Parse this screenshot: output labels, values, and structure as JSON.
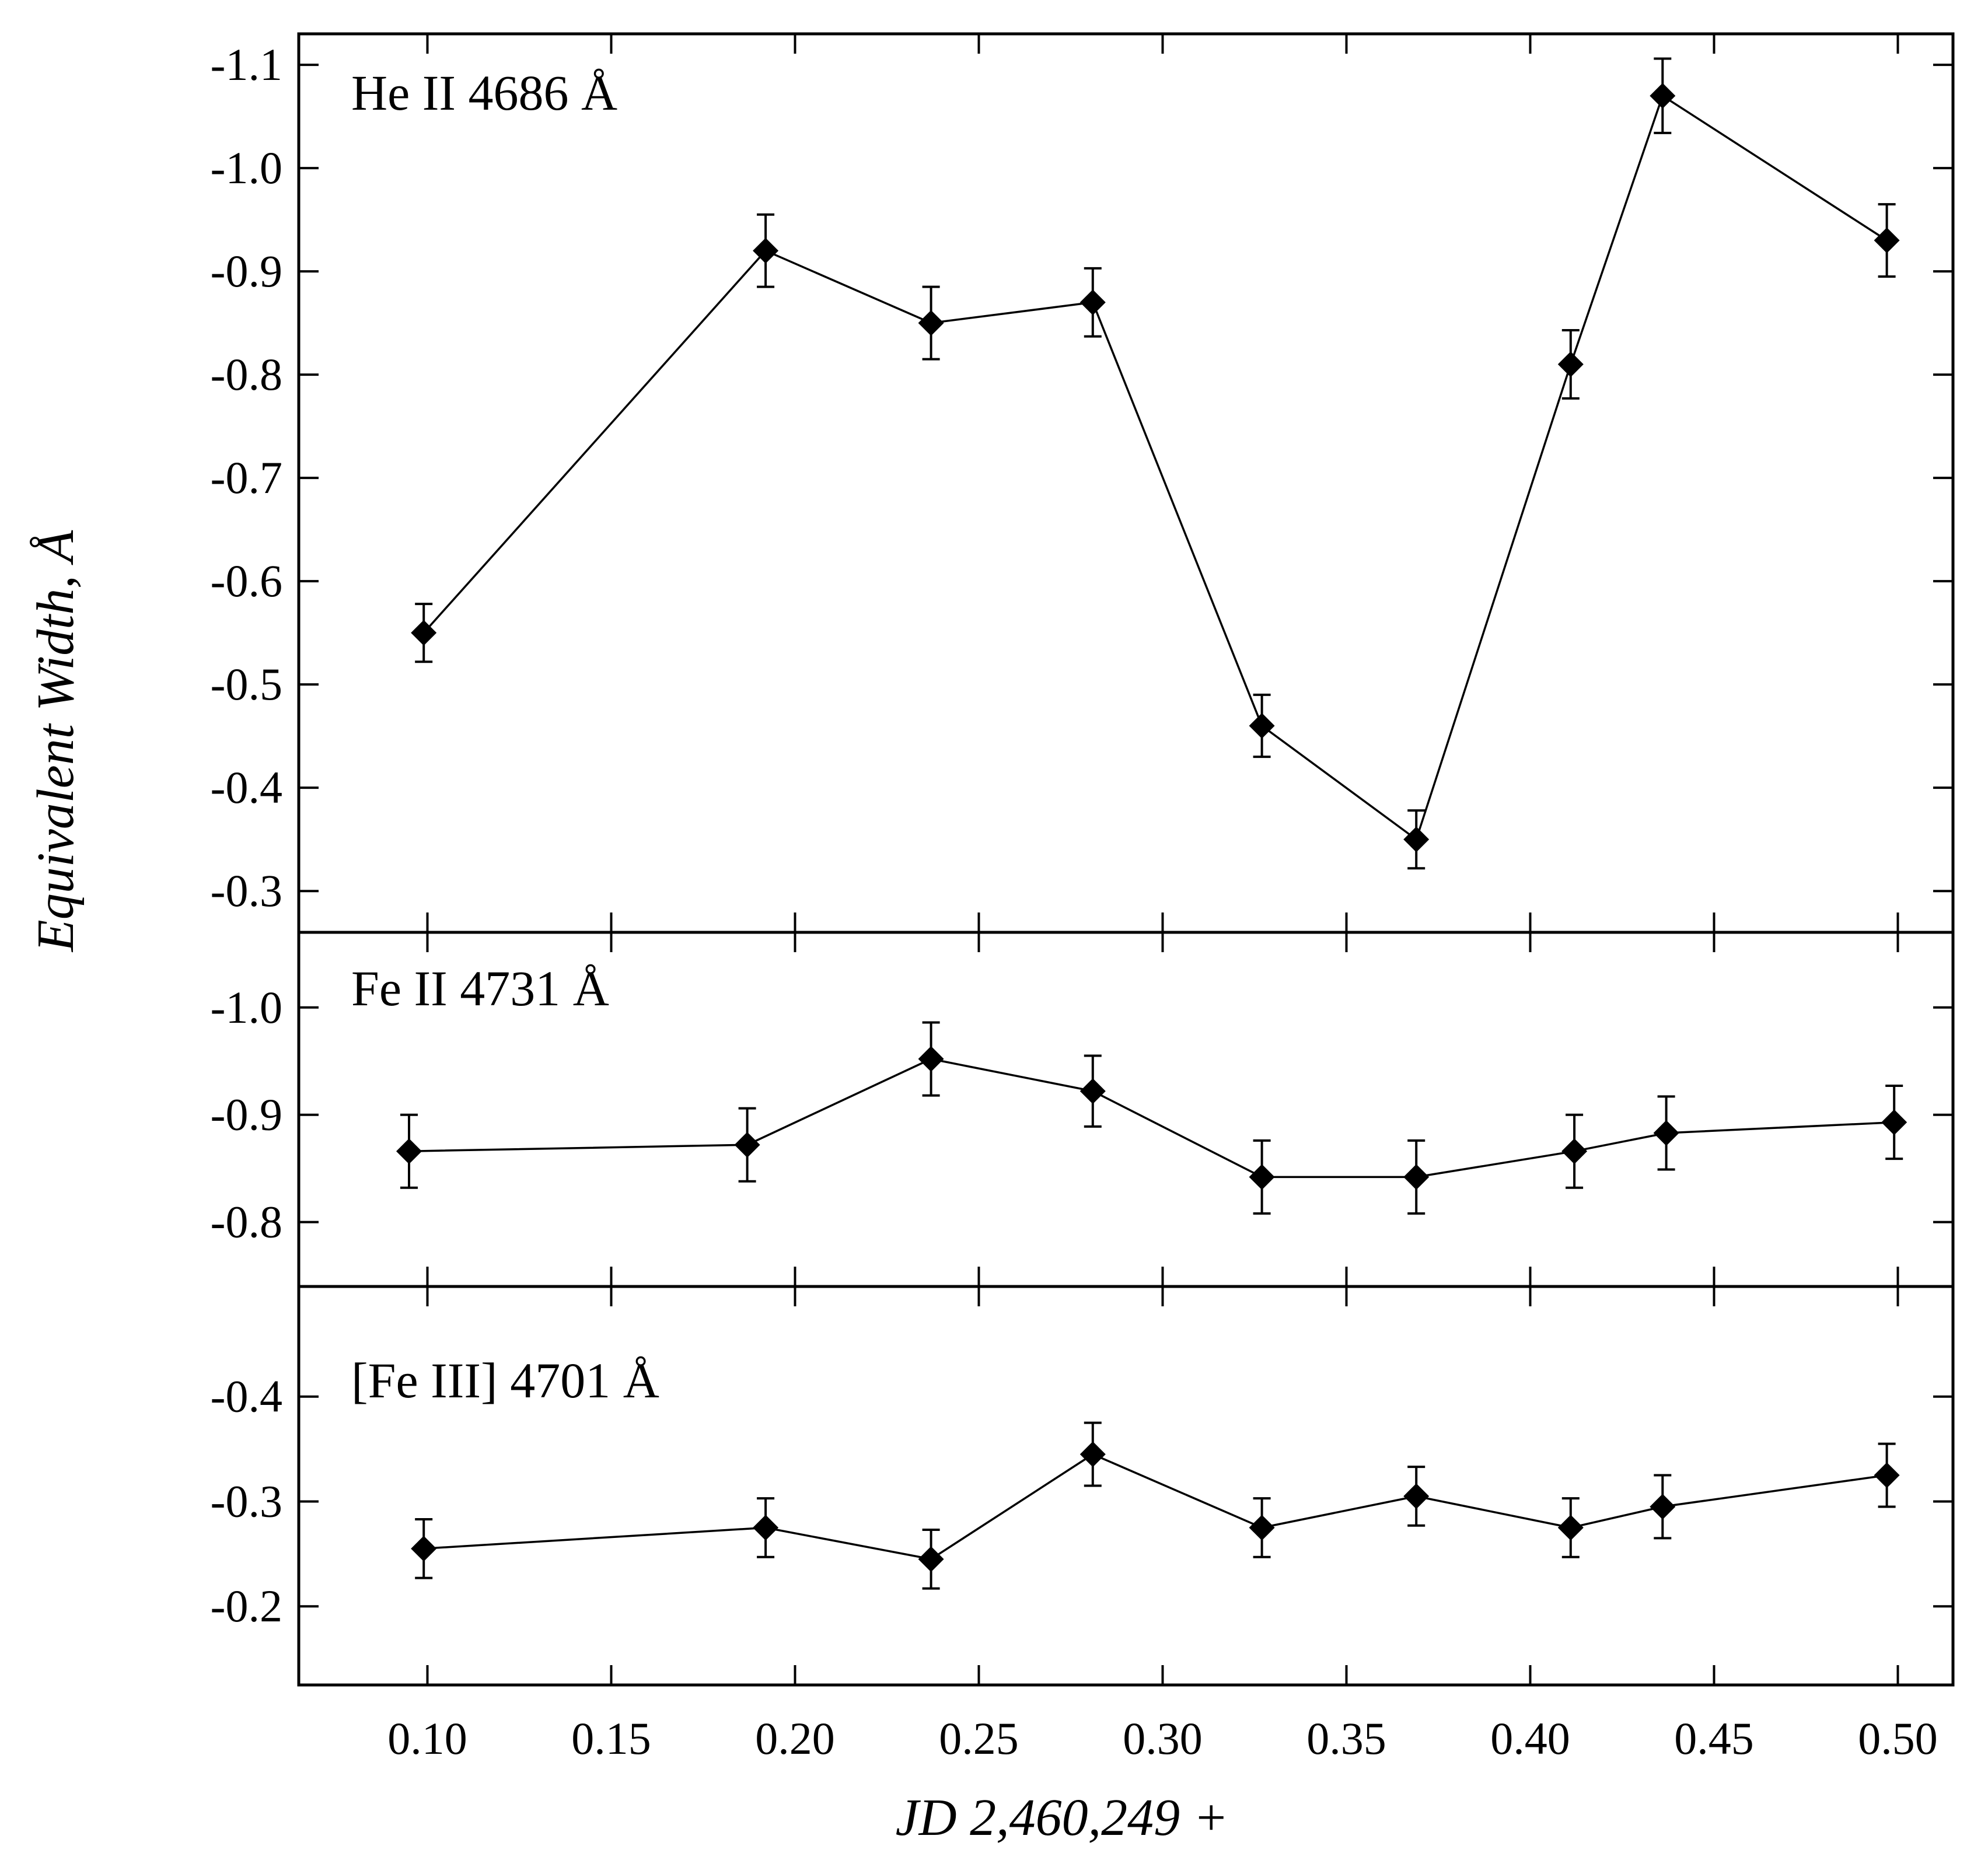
{
  "chart_data": {
    "type": "line",
    "title": "",
    "xlabel": "JD 2,460,249 +",
    "ylabel": "Equivalent Width, Å",
    "xlim": [
      0.065,
      0.515
    ],
    "x_ticks": [
      "0.10",
      "0.15",
      "0.20",
      "0.25",
      "0.30",
      "0.35",
      "0.40",
      "0.45",
      "0.50"
    ],
    "x_tick_values": [
      0.1,
      0.15,
      0.2,
      0.25,
      0.3,
      0.35,
      0.4,
      0.45,
      0.5
    ],
    "colors": {
      "line": "#000000",
      "marker": "#000000",
      "axis": "#000000",
      "ylabel": "#1f3a5a"
    },
    "panels": [
      {
        "label": "He II 4686 Å",
        "ylim": [
          -0.26,
          -1.13
        ],
        "y_ticks": [
          "-1.1",
          "-1.0",
          "-0.9",
          "-0.8",
          "-0.7",
          "-0.6",
          "-0.5",
          "-0.4",
          "-0.3"
        ],
        "y_tick_values": [
          -1.1,
          -1.0,
          -0.9,
          -0.8,
          -0.7,
          -0.6,
          -0.5,
          -0.4,
          -0.3
        ],
        "series": [
          {
            "name": "He II 4686 Å",
            "x": [
              0.099,
              0.192,
              0.237,
              0.281,
              0.327,
              0.369,
              0.411,
              0.436,
              0.497
            ],
            "y": [
              -0.55,
              -0.92,
              -0.85,
              -0.87,
              -0.46,
              -0.35,
              -0.81,
              -1.07,
              -0.93
            ],
            "err": [
              0.028,
              0.035,
              0.035,
              0.033,
              0.03,
              0.028,
              0.033,
              0.036,
              0.035
            ]
          }
        ]
      },
      {
        "label": "Fe II 4731 Å",
        "ylim": [
          -0.74,
          -1.07
        ],
        "y_ticks": [
          "-1.0",
          "-0.9",
          "-0.8"
        ],
        "y_tick_values": [
          -1.0,
          -0.9,
          -0.8
        ],
        "series": [
          {
            "name": "Fe II 4731 Å",
            "x": [
              0.095,
              0.187,
              0.237,
              0.281,
              0.327,
              0.369,
              0.412,
              0.437,
              0.499
            ],
            "y": [
              -0.866,
              -0.872,
              -0.952,
              -0.922,
              -0.842,
              -0.842,
              -0.866,
              -0.883,
              -0.893
            ],
            "err": [
              0.034,
              0.034,
              0.034,
              0.033,
              0.034,
              0.034,
              0.034,
              0.034,
              0.034
            ]
          }
        ]
      },
      {
        "label": "[Fe III] 4701 Å",
        "ylim": [
          -0.125,
          -0.505
        ],
        "y_ticks": [
          "-0.4",
          "-0.3",
          "-0.2"
        ],
        "y_tick_values": [
          -0.4,
          -0.3,
          -0.2
        ],
        "series": [
          {
            "name": "[Fe III] 4701 Å",
            "x": [
              0.099,
              0.192,
              0.237,
              0.281,
              0.327,
              0.369,
              0.411,
              0.436,
              0.497
            ],
            "y": [
              -0.255,
              -0.275,
              -0.245,
              -0.345,
              -0.275,
              -0.305,
              -0.275,
              -0.295,
              -0.325
            ],
            "err": [
              0.028,
              0.028,
              0.028,
              0.03,
              0.028,
              0.028,
              0.028,
              0.03,
              0.03
            ]
          }
        ]
      }
    ]
  }
}
